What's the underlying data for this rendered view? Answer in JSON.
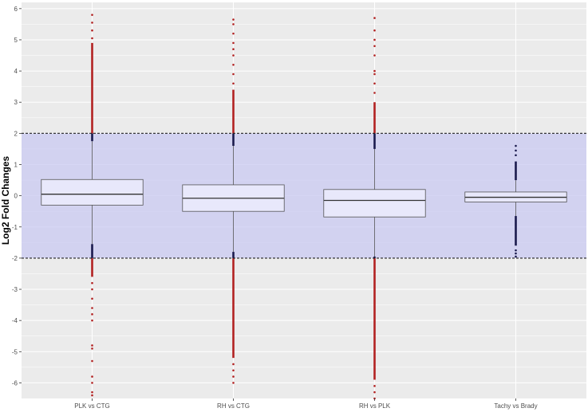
{
  "chart_data": {
    "type": "box",
    "ylabel": "Log2 Fold Changes",
    "xlabel": "",
    "title": "",
    "categories": [
      "PLK vs CTG",
      "RH vs CTG",
      "RH vs PLK",
      "Tachy vs Brady"
    ],
    "ylim": [
      -6.5,
      6.2
    ],
    "yticks": [
      -6,
      -5,
      -4,
      -3,
      -2,
      -1,
      0,
      1,
      2,
      3,
      4,
      5,
      6
    ],
    "grid": true,
    "threshold_band": [
      -2,
      2
    ],
    "boxes": [
      {
        "category": "PLK vs CTG",
        "q1": -0.3,
        "median": 0.05,
        "q3": 0.52,
        "whisker_low": -1.55,
        "whisker_high": 1.75,
        "outliers_high_dense_to": 4.9,
        "outliers_low_dense_to": -2.6,
        "outliers_high_sparse": [
          5.05,
          5.3,
          5.55,
          5.8
        ],
        "outliers_low_sparse": [
          -2.8,
          -3.0,
          -3.3,
          -3.6,
          -3.8,
          -4.0,
          -4.8,
          -4.9,
          -5.3,
          -5.8,
          -6.0,
          -6.3,
          -6.4
        ]
      },
      {
        "category": "RH vs CTG",
        "q1": -0.5,
        "median": -0.08,
        "q3": 0.35,
        "whisker_low": -1.8,
        "whisker_high": 1.6,
        "outliers_high_dense_to": 3.4,
        "outliers_low_dense_to": -5.2,
        "outliers_high_sparse": [
          3.6,
          3.9,
          4.2,
          4.5,
          4.7,
          4.9,
          5.2,
          5.5,
          5.65
        ],
        "outliers_low_sparse": [
          -5.4,
          -5.6,
          -5.8,
          -6.0
        ]
      },
      {
        "category": "RH vs PLK",
        "q1": -0.68,
        "median": -0.15,
        "q3": 0.2,
        "whisker_low": -1.95,
        "whisker_high": 1.5,
        "outliers_high_dense_to": 3.0,
        "outliers_low_dense_to": -5.9,
        "outliers_high_sparse": [
          3.3,
          3.6,
          3.9,
          4.0,
          4.5,
          4.8,
          5.0,
          5.3,
          5.7
        ],
        "outliers_low_sparse": [
          -6.1,
          -6.3,
          -6.5
        ]
      },
      {
        "category": "Tachy vs Brady",
        "q1": -0.2,
        "median": -0.05,
        "q3": 0.12,
        "whisker_low": -0.65,
        "whisker_high": 0.5,
        "outliers_high_dense_to": 1.1,
        "outliers_low_dense_to": -1.6,
        "outliers_high_sparse": [
          1.3,
          1.45,
          1.6
        ],
        "outliers_low_sparse": [
          -1.75,
          -1.85,
          -1.95
        ]
      }
    ],
    "colors": {
      "panel_bg": "#ebebeb",
      "grid": "#ffffff",
      "band": "#c9c9f2",
      "box_fill": "#e8e8fb",
      "box_stroke": "#555555",
      "outlier_outside": "#b22222",
      "outlier_inside": "#1a1a4d",
      "threshold_line": "#222222",
      "tick_text": "#4d4d4d"
    }
  }
}
